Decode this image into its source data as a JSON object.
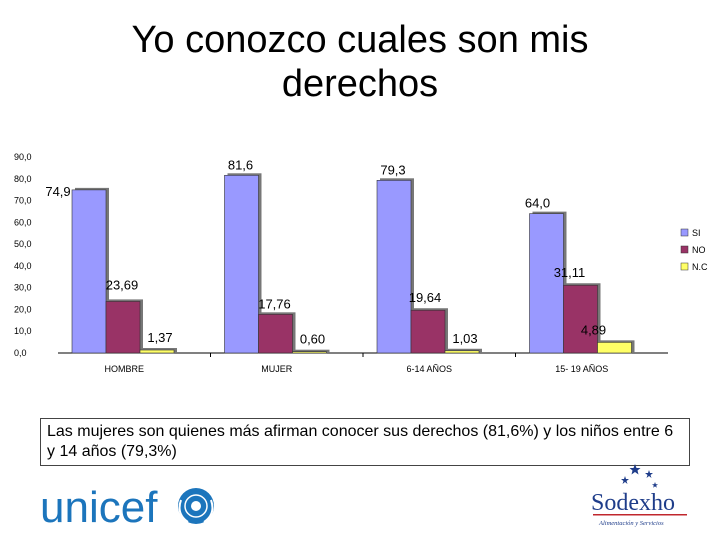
{
  "slide": {
    "title_line1": "Yo conozco cuales son mis",
    "title_line2": "derechos",
    "note": "Las mujeres son quienes más afirman conocer sus derechos (81,6%) y los niños entre 6 y 14 años (79,3%)",
    "logo_left": "unicef",
    "logo_right": "Sodexho",
    "logo_right_tagline": "Alimentación y Servicios"
  },
  "colors": {
    "SI": "#9999ff",
    "NO": "#993366",
    "N.C": "#ffff66"
  },
  "chart_data": {
    "type": "bar",
    "title": "",
    "xlabel": "",
    "ylabel": "",
    "ylim": [
      0,
      90
    ],
    "yticks": [
      "0,0",
      "10,0",
      "20,0",
      "30,0",
      "40,0",
      "50,0",
      "60,0",
      "70,0",
      "80,0",
      "90,0"
    ],
    "categories": [
      "HOMBRE",
      "MUJER",
      "6-14 AÑOS",
      "15- 19 AÑOS"
    ],
    "legend_position": "right",
    "grid": false,
    "series": [
      {
        "name": "SI",
        "values": [
          74.9,
          81.6,
          79.3,
          64.0
        ],
        "labels": [
          "74,9",
          "81,6",
          "79,3",
          "64,0"
        ]
      },
      {
        "name": "NO",
        "values": [
          23.69,
          17.76,
          19.64,
          31.11
        ],
        "labels": [
          "23,69",
          "17,76",
          "19,64",
          "31,11"
        ]
      },
      {
        "name": "N.C",
        "values": [
          1.37,
          0.6,
          1.03,
          4.89
        ],
        "labels": [
          "1,37",
          "0,60",
          "1,03",
          "4,89"
        ]
      }
    ]
  }
}
